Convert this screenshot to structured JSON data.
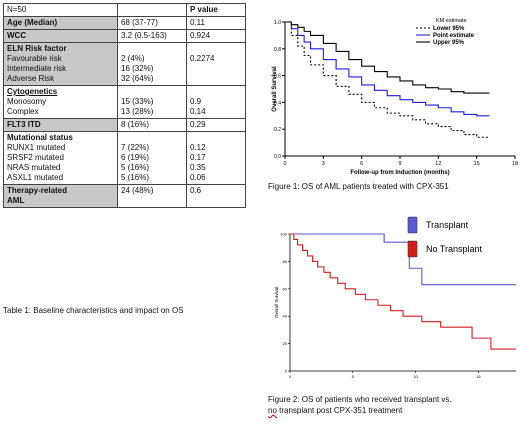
{
  "table": {
    "header": [
      "N=50",
      "",
      "P value"
    ],
    "rows": [
      {
        "grey": true,
        "cells": [
          [
            "Age (Median)"
          ],
          [
            "68 (37-77)"
          ],
          [
            "0.11"
          ]
        ],
        "bold1": true
      },
      {
        "grey": true,
        "cells": [
          [
            "WCC"
          ],
          [
            "3.2 (0.5-163)"
          ],
          [
            "0.924"
          ]
        ],
        "bold1": true
      },
      {
        "grey": true,
        "cells": [
          [
            "ELN Risk factor",
            "Favourable risk",
            "Intermediate risk",
            "Adverse Risk"
          ],
          [
            "",
            "2 (4%)",
            "16 (32%)",
            "32 (64%)"
          ],
          [
            "",
            "0.2274",
            "",
            ""
          ]
        ],
        "bold1": true,
        "headline": true
      },
      {
        "grey": false,
        "cells": [
          [
            "Cytogenetics",
            "Monosomy",
            "Complex"
          ],
          [
            "",
            "15 (33%)",
            "13 (28%)"
          ],
          [
            "",
            "0.9",
            "0.14"
          ]
        ],
        "bold1": true,
        "headline": true,
        "underline": true
      },
      {
        "grey": true,
        "cells": [
          [
            "FLT3 ITD"
          ],
          [
            "8 (16%)"
          ],
          [
            "0.29"
          ]
        ],
        "bold1": true
      },
      {
        "grey": false,
        "cells": [
          [
            "Mutational status",
            "RUNX1 mutated",
            "SRSF2 mutated",
            "NRAS mutated",
            "ASXL1 mutated"
          ],
          [
            "",
            "7 (22%)",
            "6 (19%)",
            "5 (16%)",
            "5 (16%)"
          ],
          [
            "",
            "0.12",
            "0.17",
            "0.35",
            "0.06"
          ]
        ],
        "bold1": true,
        "headline": true
      },
      {
        "grey": true,
        "cells": [
          [
            "Therapy-related",
            "AML"
          ],
          [
            "24 (48%)"
          ],
          [
            "0.6"
          ]
        ],
        "bold1": true,
        "allbold": true
      }
    ],
    "caption": "Table 1:  Baseline characteristics and impact on OS"
  },
  "chart_data": [
    {
      "type": "line",
      "ylabel": "Overall Survival",
      "xlabel": "Follow-up from Induction (months)",
      "xlim": [
        0,
        18
      ],
      "ylim": [
        0,
        1.0
      ],
      "xticks": [
        0,
        3,
        6,
        9,
        12,
        15,
        18
      ],
      "yticks": [
        "0.0",
        "0.2",
        "0.4",
        "0.6",
        "0.8",
        "1.0"
      ],
      "legend_title": "KM estimate",
      "legend_position": "top-right",
      "series": [
        {
          "name": "Lower 95%",
          "color": "#000000",
          "dash": "2,2",
          "x": [
            0,
            0.5,
            1,
            1.5,
            2,
            3,
            4,
            5,
            6,
            7,
            8,
            9,
            10,
            11,
            12,
            13,
            14,
            15,
            16
          ],
          "y": [
            1.0,
            0.9,
            0.82,
            0.75,
            0.68,
            0.6,
            0.52,
            0.46,
            0.4,
            0.36,
            0.32,
            0.3,
            0.27,
            0.24,
            0.22,
            0.19,
            0.16,
            0.14,
            0.14
          ]
        },
        {
          "name": "Point estimate",
          "color": "#1e1edc",
          "dash": "",
          "x": [
            0,
            0.5,
            1,
            1.5,
            2,
            3,
            4,
            5,
            6,
            7,
            8,
            9,
            10,
            11,
            12,
            13,
            14,
            15,
            16
          ],
          "y": [
            1.0,
            0.95,
            0.9,
            0.85,
            0.8,
            0.72,
            0.65,
            0.59,
            0.53,
            0.49,
            0.45,
            0.42,
            0.4,
            0.38,
            0.36,
            0.33,
            0.31,
            0.3,
            0.3
          ]
        },
        {
          "name": "Upper 95%",
          "color": "#000000",
          "dash": "",
          "x": [
            0,
            0.5,
            1,
            1.5,
            2,
            3,
            4,
            5,
            6,
            7,
            8,
            9,
            10,
            11,
            12,
            13,
            14,
            15,
            16
          ],
          "y": [
            1.0,
            0.98,
            0.96,
            0.93,
            0.9,
            0.84,
            0.78,
            0.72,
            0.67,
            0.63,
            0.59,
            0.56,
            0.53,
            0.51,
            0.5,
            0.48,
            0.47,
            0.47,
            0.47
          ]
        }
      ],
      "caption": "Figure 1: OS of AML patients treated with CPX-351"
    },
    {
      "type": "line",
      "ylabel": "Overall Survival",
      "xlim": [
        0,
        18
      ],
      "ylim": [
        0,
        100
      ],
      "xticks": [
        0,
        5,
        10,
        15
      ],
      "yticks": [
        "0",
        "20",
        "40",
        "60",
        "80",
        "100"
      ],
      "legend_position": "top-right",
      "series": [
        {
          "name": "Transplant",
          "color": "#5a5ad2",
          "x": [
            0,
            7.5,
            7.5,
            9.5,
            9.5,
            10.5,
            10.5,
            18
          ],
          "y": [
            100,
            100,
            94,
            94,
            75,
            75,
            63,
            63
          ]
        },
        {
          "name": "No Transplant",
          "color": "#d21e1e",
          "x": [
            0,
            0.3,
            0.6,
            1.0,
            1.4,
            1.8,
            2.2,
            2.7,
            3.2,
            3.8,
            4.4,
            5.2,
            6.0,
            7.0,
            8.0,
            9.0,
            10.5,
            12.0,
            14.5,
            16.0,
            18.0
          ],
          "y": [
            100,
            96,
            92,
            88,
            84,
            80,
            76,
            72,
            68,
            64,
            60,
            56,
            52,
            48,
            44,
            40,
            36,
            32,
            24,
            16,
            16
          ]
        }
      ],
      "caption_line1": "Figure 2: OS of patients who received transplant vs.",
      "caption_line2_a": "no",
      "caption_line2_b": " transplant post CPX-351 treatment"
    }
  ]
}
